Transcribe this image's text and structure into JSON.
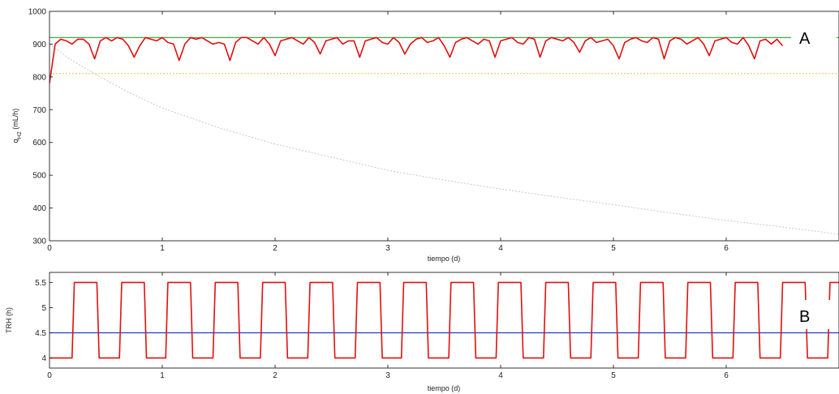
{
  "chart_data": [
    {
      "type": "line",
      "panel_label": "A",
      "xlabel": "tiempo (d)",
      "ylabel": "q",
      "ylabel_sub": "H2",
      "ylabel_unit": " (mL/h)",
      "xlim": [
        0,
        7
      ],
      "ylim": [
        300,
        1000
      ],
      "xticks": [
        0,
        1,
        2,
        3,
        4,
        5,
        6
      ],
      "yticks": [
        300,
        400,
        500,
        600,
        700,
        800,
        900,
        1000
      ],
      "grid": false,
      "colors": {
        "measured": "#1f3fbf",
        "model": "#e01010",
        "setpoint": "#2e9e2e",
        "band": "#e8c64a",
        "decay": "#c8c8c8"
      },
      "series": [
        {
          "key": "setpoint",
          "values": [
            [
              0,
              920
            ],
            [
              7,
              920
            ]
          ]
        },
        {
          "key": "band",
          "values": [
            [
              0,
              810
            ],
            [
              7,
              810
            ]
          ]
        },
        {
          "key": "decay",
          "x": [
            0,
            0.1,
            0.2,
            0.3,
            0.5,
            0.75,
            1,
            1.5,
            2,
            2.5,
            3,
            3.5,
            4,
            4.5,
            5,
            5.5,
            6,
            6.5,
            7
          ],
          "y": [
            900,
            875,
            850,
            830,
            790,
            745,
            705,
            645,
            595,
            555,
            515,
            485,
            458,
            433,
            410,
            385,
            362,
            342,
            320
          ]
        },
        {
          "key": "model",
          "x": [
            0,
            0.05,
            0.1,
            0.15,
            0.2,
            0.25,
            0.3,
            0.35,
            0.4,
            0.45,
            0.5,
            0.55,
            0.6,
            0.65,
            0.7,
            0.75,
            0.8,
            0.85,
            0.9,
            0.95,
            1,
            1.05,
            1.1,
            1.15,
            1.2,
            1.25,
            1.3,
            1.35,
            1.4,
            1.45,
            1.5,
            1.55,
            1.6,
            1.65,
            1.7,
            1.75,
            1.8,
            1.85,
            1.9,
            1.95,
            2,
            2.05,
            2.1,
            2.15,
            2.2,
            2.25,
            2.3,
            2.35,
            2.4,
            2.45,
            2.5,
            2.55,
            2.6,
            2.65,
            2.7,
            2.75,
            2.8,
            2.85,
            2.9,
            2.95,
            3,
            3.05,
            3.1,
            3.15,
            3.2,
            3.25,
            3.3,
            3.35,
            3.4,
            3.45,
            3.5,
            3.55,
            3.6,
            3.65,
            3.7,
            3.75,
            3.8,
            3.85,
            3.9,
            3.95,
            4,
            4.05,
            4.1,
            4.15,
            4.2,
            4.25,
            4.3,
            4.35,
            4.4,
            4.45,
            4.5,
            4.55,
            4.6,
            4.65,
            4.7,
            4.75,
            4.8,
            4.85,
            4.9,
            4.95,
            5,
            5.05,
            5.1,
            5.15,
            5.2,
            5.25,
            5.3,
            5.35,
            5.4,
            5.45,
            5.5,
            5.55,
            5.6,
            5.65,
            5.7,
            5.75,
            5.8,
            5.85,
            5.9,
            5.95,
            6,
            6.05,
            6.1,
            6.15,
            6.2,
            6.25,
            6.3,
            6.35,
            6.4,
            6.45,
            6.5
          ],
          "y": [
            780,
            900,
            915,
            910,
            900,
            915,
            915,
            900,
            855,
            910,
            920,
            910,
            920,
            915,
            895,
            860,
            895,
            920,
            915,
            910,
            920,
            905,
            900,
            850,
            900,
            920,
            915,
            920,
            910,
            900,
            905,
            900,
            850,
            905,
            920,
            920,
            910,
            900,
            920,
            900,
            865,
            910,
            915,
            920,
            910,
            900,
            920,
            905,
            870,
            910,
            915,
            920,
            900,
            910,
            910,
            860,
            910,
            915,
            920,
            905,
            900,
            920,
            905,
            870,
            900,
            915,
            920,
            905,
            910,
            920,
            895,
            860,
            905,
            915,
            920,
            910,
            900,
            915,
            910,
            860,
            910,
            915,
            920,
            905,
            900,
            920,
            915,
            860,
            910,
            920,
            915,
            910,
            920,
            905,
            875,
            910,
            920,
            905,
            910,
            915,
            895,
            855,
            905,
            915,
            920,
            910,
            905,
            920,
            915,
            855,
            910,
            920,
            915,
            900,
            910,
            920,
            900,
            865,
            910,
            915,
            920,
            905,
            900,
            920,
            895,
            855,
            910,
            915,
            900,
            915,
            895
          ]
        }
      ]
    },
    {
      "type": "line",
      "panel_label": "B",
      "xlabel": "tiempo (d)",
      "ylabel": "TRH (h)",
      "xlim": [
        0,
        7
      ],
      "ylim": [
        3.8,
        5.7
      ],
      "xticks": [
        0,
        1,
        2,
        3,
        4,
        5,
        6
      ],
      "yticks": [
        4,
        4.5,
        5,
        5.5
      ],
      "ytick_labels": [
        "4",
        "4.5",
        "5",
        "5.5"
      ],
      "grid": false,
      "colors": {
        "reference": "#1f3fbf",
        "trh": "#e01010"
      },
      "series": [
        {
          "key": "reference",
          "values": [
            [
              0,
              4.5
            ],
            [
              7,
              4.5
            ]
          ]
        },
        {
          "key": "trh",
          "x": [
            0,
            0.2,
            0.22,
            0.42,
            0.44,
            0.62,
            0.64,
            0.84,
            0.86,
            1.03,
            1.05,
            1.25,
            1.27,
            1.45,
            1.47,
            1.67,
            1.69,
            1.87,
            1.89,
            2.09,
            2.11,
            2.29,
            2.31,
            2.51,
            2.53,
            2.71,
            2.73,
            2.93,
            2.95,
            3.12,
            3.14,
            3.34,
            3.36,
            3.54,
            3.56,
            3.76,
            3.78,
            3.96,
            3.98,
            4.18,
            4.2,
            4.38,
            4.4,
            4.6,
            4.62,
            4.8,
            4.82,
            5.02,
            5.04,
            5.22,
            5.24,
            5.44,
            5.46,
            5.64,
            5.66,
            5.86,
            5.88,
            6.06,
            6.08,
            6.28,
            6.3,
            6.48,
            6.5,
            6.7,
            6.72,
            6.9,
            6.92,
            7
          ],
          "y": [
            4,
            4,
            5.5,
            5.5,
            4,
            4,
            5.5,
            5.5,
            4,
            4,
            5.5,
            5.5,
            4,
            4,
            5.5,
            5.5,
            4,
            4,
            5.5,
            5.5,
            4,
            4,
            5.5,
            5.5,
            4,
            4,
            5.5,
            5.5,
            4,
            4,
            5.5,
            5.5,
            4,
            4,
            5.5,
            5.5,
            4,
            4,
            5.5,
            5.5,
            4,
            4,
            5.5,
            5.5,
            4,
            4,
            5.5,
            5.5,
            4,
            4,
            5.5,
            5.5,
            4,
            4,
            5.5,
            5.5,
            4,
            4,
            5.5,
            5.5,
            4,
            4,
            5.5,
            5.5,
            4,
            4,
            5.5,
            5.5
          ]
        }
      ]
    }
  ]
}
